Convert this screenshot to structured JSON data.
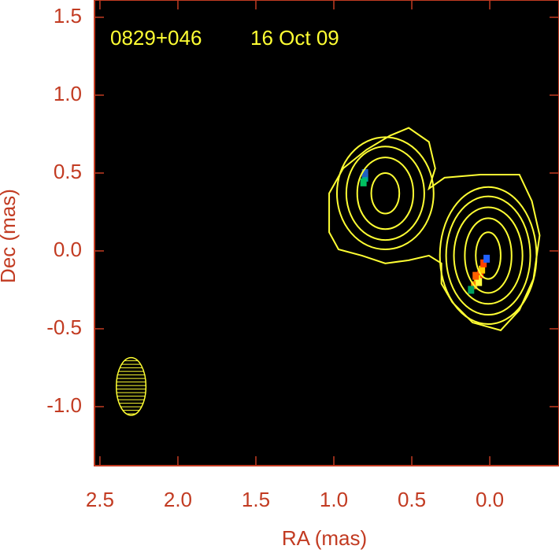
{
  "chart_data": {
    "type": "contour",
    "source": "0829+046",
    "epoch": "16 Oct 09",
    "xlabel": "RA (mas)",
    "ylabel": "Dec (mas)",
    "xlim": [
      2.535,
      -0.444
    ],
    "ylim": [
      -1.379,
      1.611
    ],
    "xticks": [
      2.5,
      {
        "value": 2.0,
        "label": "2.0"
      },
      1.5,
      {
        "value": 1.0,
        "label": "1.0"
      },
      0.5,
      {
        "value": 0.0,
        "label": "0.0"
      }
    ],
    "yticks": [
      {
        "value": -1.0,
        "label": "-1.0"
      },
      -0.5,
      {
        "value": 0.0,
        "label": "0.0"
      },
      0.5,
      {
        "value": 1.0,
        "label": "1.0"
      },
      1.5
    ],
    "contour_color": "#ffff33",
    "outer_contour": {
      "x": [
        1.03,
        0.94,
        0.79,
        0.64,
        0.52,
        0.39,
        0.35,
        0.39,
        0.29,
        0.06,
        -0.19,
        -0.27,
        -0.32,
        -0.28,
        -0.19,
        -0.07,
        0.11,
        0.24,
        0.31,
        0.31,
        0.39,
        0.52,
        0.67,
        0.82,
        0.97,
        1.03
      ],
      "y": [
        0.37,
        0.53,
        0.65,
        0.74,
        0.79,
        0.7,
        0.53,
        0.4,
        0.47,
        0.49,
        0.49,
        0.32,
        0.1,
        -0.18,
        -0.38,
        -0.51,
        -0.46,
        -0.33,
        -0.21,
        -0.08,
        -0.03,
        -0.06,
        -0.08,
        -0.03,
        0.01,
        0.12
      ]
    },
    "components": [
      {
        "ra": 0.67,
        "dec": 0.37,
        "rx": [
          0.09,
          0.18,
          0.25,
          0.31
        ],
        "ry": [
          0.13,
          0.23,
          0.3,
          0.36
        ]
      },
      {
        "ra": 0.01,
        "dec": -0.03,
        "rx": [
          0.08,
          0.15,
          0.22,
          0.27,
          0.31
        ],
        "ry": [
          0.15,
          0.24,
          0.31,
          0.38,
          0.44
        ]
      }
    ],
    "emission": {
      "ra": [
        0.06,
        0.05,
        0.08,
        0.04,
        0.1,
        0.12,
        0.02,
        0.07,
        0.09,
        0.8,
        0.8,
        0.81
      ],
      "dec": [
        -0.15,
        -0.12,
        -0.18,
        -0.08,
        -0.22,
        -0.25,
        -0.05,
        -0.2,
        -0.16,
        0.47,
        0.5,
        0.44
      ],
      "colors": [
        "#ff2000",
        "#ffcc00",
        "#ffee00",
        "#ff4000",
        "#ff8000",
        "#00a060",
        "#2060ff",
        "#ffff40",
        "#ff6000",
        "#00a0a0",
        "#2060c0",
        "#00c060"
      ]
    },
    "beam": {
      "ra": 2.3,
      "dec": -0.87,
      "major": 0.37,
      "minor": 0.19
    }
  }
}
